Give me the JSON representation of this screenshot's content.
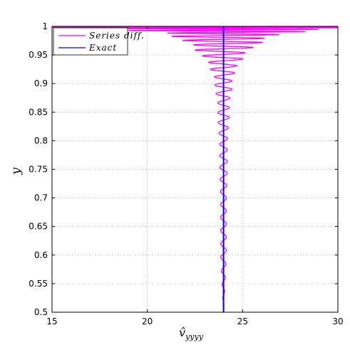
{
  "chart_data": {
    "type": "line",
    "xlabel": "v̂yyyy",
    "ylabel": "y",
    "xlim": [
      15,
      30
    ],
    "ylim": [
      0.5,
      1
    ],
    "xticks": [
      "15",
      "20",
      "25",
      "30"
    ],
    "yticks": [
      "0.5",
      "0.55",
      "0.6",
      "0.65",
      "0.7",
      "0.75",
      "0.8",
      "0.85",
      "0.9",
      "0.95",
      "1"
    ],
    "grid": true,
    "legend_position": "top-left",
    "series": [
      {
        "name": "Series diff.",
        "color": "#ff00ff",
        "x": [
          24.0,
          23.85,
          24.15,
          23.8,
          24.2,
          23.7,
          24.3,
          23.55,
          24.45,
          23.3,
          24.7,
          22.9,
          25.1,
          22.4,
          25.5,
          21.8,
          26.1,
          21.0,
          26.8,
          19.0,
          29.0,
          15.0
        ],
        "y": [
          0.5,
          0.6,
          0.7,
          0.75,
          0.8,
          0.84,
          0.87,
          0.89,
          0.91,
          0.925,
          0.935,
          0.945,
          0.953,
          0.96,
          0.967,
          0.973,
          0.979,
          0.984,
          0.988,
          0.992,
          0.995,
          0.998
        ]
      },
      {
        "name": "Exact",
        "color": "#0000ff",
        "x": [
          24.0,
          24.0
        ],
        "y": [
          0.5,
          1.0
        ]
      }
    ]
  },
  "legend": {
    "series_label": "Series diff.",
    "exact_label": "Exact"
  },
  "axes": {
    "xlabel_base": "v̂",
    "xlabel_sub": "yyyy",
    "ylabel": "y"
  }
}
